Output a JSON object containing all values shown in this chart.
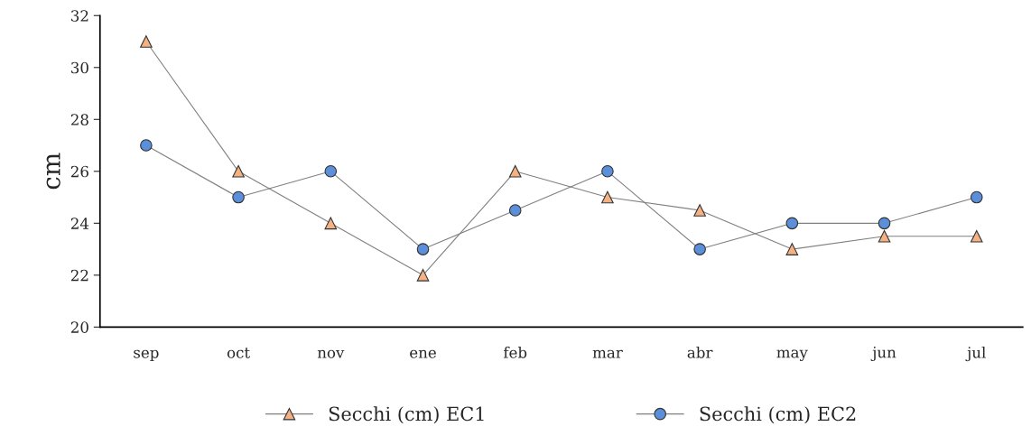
{
  "chart_data": {
    "type": "line",
    "ylabel": "cm",
    "categories": [
      "sep",
      "oct",
      "nov",
      "ene",
      "feb",
      "mar",
      "abr",
      "may",
      "jun",
      "jul"
    ],
    "series": [
      {
        "name": "Secchi (cm) EC1",
        "color": "#f4b183",
        "marker": "triangle",
        "values": [
          31,
          26,
          24,
          22,
          26,
          25,
          24.5,
          23,
          23.5,
          23.5
        ]
      },
      {
        "name": "Secchi (cm) EC2",
        "color": "#5b8fd9",
        "marker": "circle",
        "values": [
          27,
          25,
          26,
          23,
          24.5,
          26,
          23,
          24,
          24,
          25
        ]
      }
    ],
    "ylim": [
      20,
      32
    ],
    "yticks": [
      20,
      22,
      24,
      26,
      28,
      30,
      32
    ],
    "grid": false,
    "legend": "bottom",
    "line_style": "solid"
  }
}
